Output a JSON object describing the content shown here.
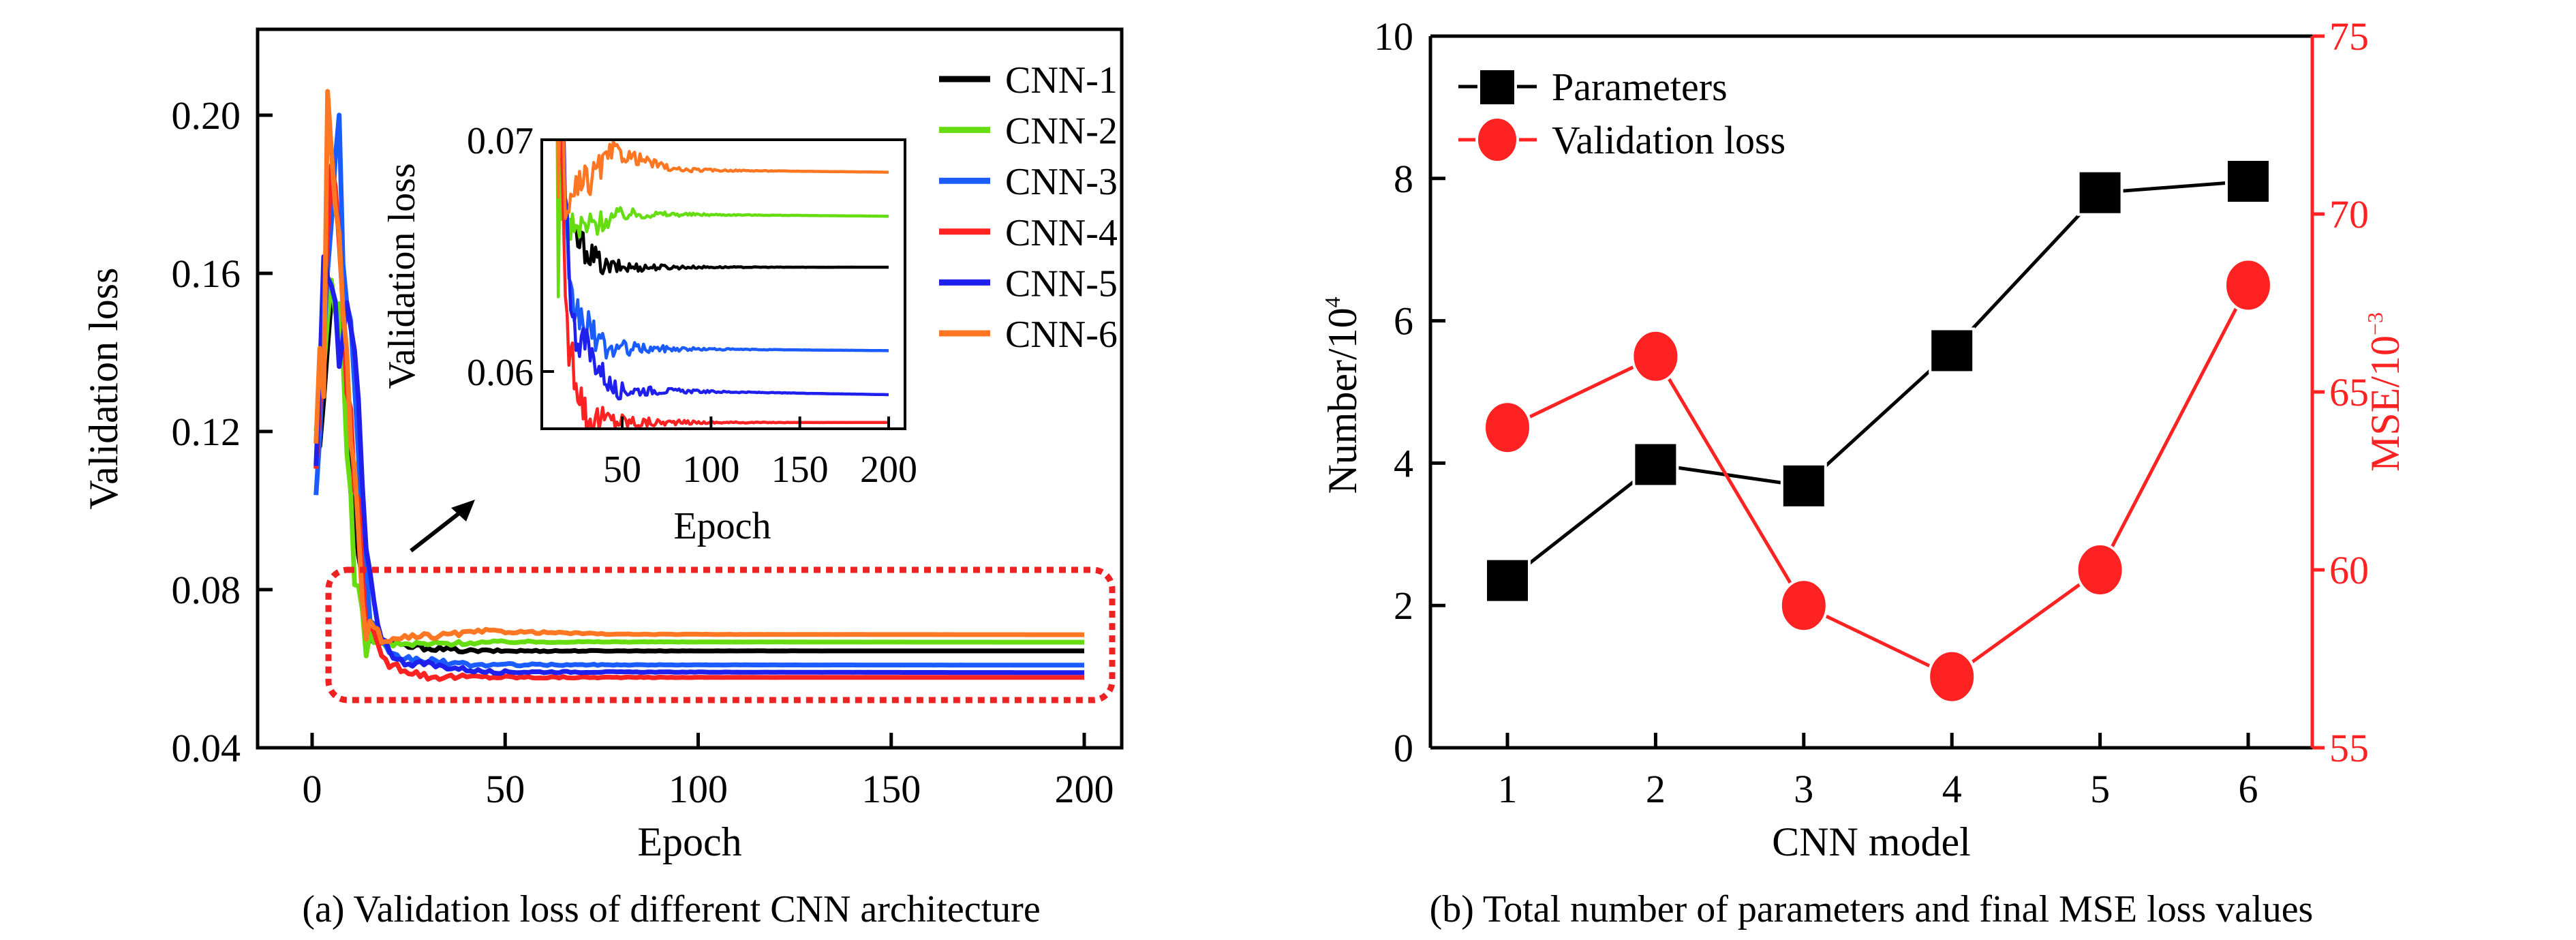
{
  "chart_data": [
    {
      "type": "line",
      "caption": "(a) Validation loss of different CNN architecture",
      "xlabel": "Epoch",
      "ylabel": "Validation loss",
      "xlim": [
        -15,
        210
      ],
      "ylim": [
        0.04,
        0.22
      ],
      "xticks": [
        "0",
        "50",
        "100",
        "150",
        "200"
      ],
      "yticks": [
        "0.04",
        "0.08",
        "0.12",
        "0.16",
        "0.20"
      ],
      "legend_placement": "top-right",
      "series": [
        {
          "name": "CNN-1",
          "color": "#000000",
          "keypoints": [
            [
              1,
              0.113
            ],
            [
              3,
              0.13
            ],
            [
              5,
              0.155
            ],
            [
              6,
              0.148
            ],
            [
              8,
              0.14
            ],
            [
              10,
              0.11
            ],
            [
              12,
              0.085
            ],
            [
              15,
              0.068
            ],
            [
              20,
              0.066
            ],
            [
              40,
              0.0645
            ],
            [
              200,
              0.0645
            ]
          ],
          "jitter": 0.0012
        },
        {
          "name": "CNN-2",
          "color": "#66dd11",
          "keypoints": [
            [
              1,
              0.115
            ],
            [
              3,
              0.135
            ],
            [
              5,
              0.16
            ],
            [
              7,
              0.15
            ],
            [
              9,
              0.12
            ],
            [
              11,
              0.085
            ],
            [
              13,
              0.069
            ],
            [
              20,
              0.066
            ],
            [
              50,
              0.0668
            ],
            [
              200,
              0.0667
            ]
          ],
          "jitter": 0.0013
        },
        {
          "name": "CNN-3",
          "color": "#1a5cff",
          "keypoints": [
            [
              1,
              0.108
            ],
            [
              3,
              0.14
            ],
            [
              5,
              0.175
            ],
            [
              7,
              0.206
            ],
            [
              8,
              0.16
            ],
            [
              10,
              0.15
            ],
            [
              12,
              0.11
            ],
            [
              15,
              0.072
            ],
            [
              20,
              0.063
            ],
            [
              40,
              0.061
            ],
            [
              200,
              0.0609
            ]
          ],
          "jitter": 0.0015
        },
        {
          "name": "CNN-4",
          "color": "#ff2222",
          "keypoints": [
            [
              1,
              0.112
            ],
            [
              3,
              0.14
            ],
            [
              5,
              0.19
            ],
            [
              7,
              0.17
            ],
            [
              9,
              0.13
            ],
            [
              11,
              0.11
            ],
            [
              14,
              0.075
            ],
            [
              18,
              0.062
            ],
            [
              30,
              0.058
            ],
            [
              60,
              0.0578
            ],
            [
              200,
              0.0578
            ]
          ],
          "jitter": 0.0016
        },
        {
          "name": "CNN-5",
          "color": "#2020ee",
          "keypoints": [
            [
              1,
              0.11
            ],
            [
              3,
              0.168
            ],
            [
              5,
              0.16
            ],
            [
              7,
              0.135
            ],
            [
              9,
              0.15
            ],
            [
              11,
              0.14
            ],
            [
              14,
              0.09
            ],
            [
              17,
              0.07
            ],
            [
              22,
              0.062
            ],
            [
              45,
              0.0592
            ],
            [
              200,
              0.059
            ]
          ],
          "jitter": 0.0015
        },
        {
          "name": "CNN-6",
          "color": "#ff7722",
          "keypoints": [
            [
              1,
              0.113
            ],
            [
              2,
              0.14
            ],
            [
              3,
              0.13
            ],
            [
              4,
              0.209
            ],
            [
              6,
              0.18
            ],
            [
              8,
              0.15
            ],
            [
              10,
              0.12
            ],
            [
              13,
              0.075
            ],
            [
              18,
              0.067
            ],
            [
              45,
              0.0695
            ],
            [
              80,
              0.0687
            ],
            [
              200,
              0.0686
            ]
          ],
          "jitter": 0.0016
        }
      ],
      "inset": {
        "xlabel": "Epoch",
        "ylabel": "Validation loss",
        "xlim": [
          5,
          210
        ],
        "ylim": [
          0.0551,
          0.08
        ],
        "xticks": [
          "50",
          "100",
          "150",
          "200"
        ],
        "yticks": [
          "0.06",
          "0.07",
          "0.08"
        ]
      }
    },
    {
      "type": "line",
      "caption": "(b) Total number of parameters and final MSE loss values",
      "xlabel": "CNN model",
      "ylabel": "Number/10",
      "ylabel_sup": "4",
      "y2label": "MSE/10",
      "y2label_sup": "−3",
      "categories": [
        "1",
        "2",
        "3",
        "4",
        "5",
        "6"
      ],
      "ylim": [
        0,
        10
      ],
      "y2lim": [
        55,
        75
      ],
      "yticks": [
        "0",
        "2",
        "4",
        "6",
        "8",
        "10"
      ],
      "y2ticks": [
        "55",
        "60",
        "65",
        "70",
        "75"
      ],
      "legend_placement": "top-left",
      "series": [
        {
          "name": "Parameters",
          "axis": "left",
          "marker": "square",
          "color": "#000000",
          "values": [
            2.35,
            3.98,
            3.68,
            5.58,
            7.8,
            7.96
          ]
        },
        {
          "name": "Validation loss",
          "axis": "right",
          "marker": "circle",
          "color": "#ff2222",
          "values": [
            64,
            66,
            59,
            57,
            60,
            68
          ]
        }
      ]
    }
  ]
}
